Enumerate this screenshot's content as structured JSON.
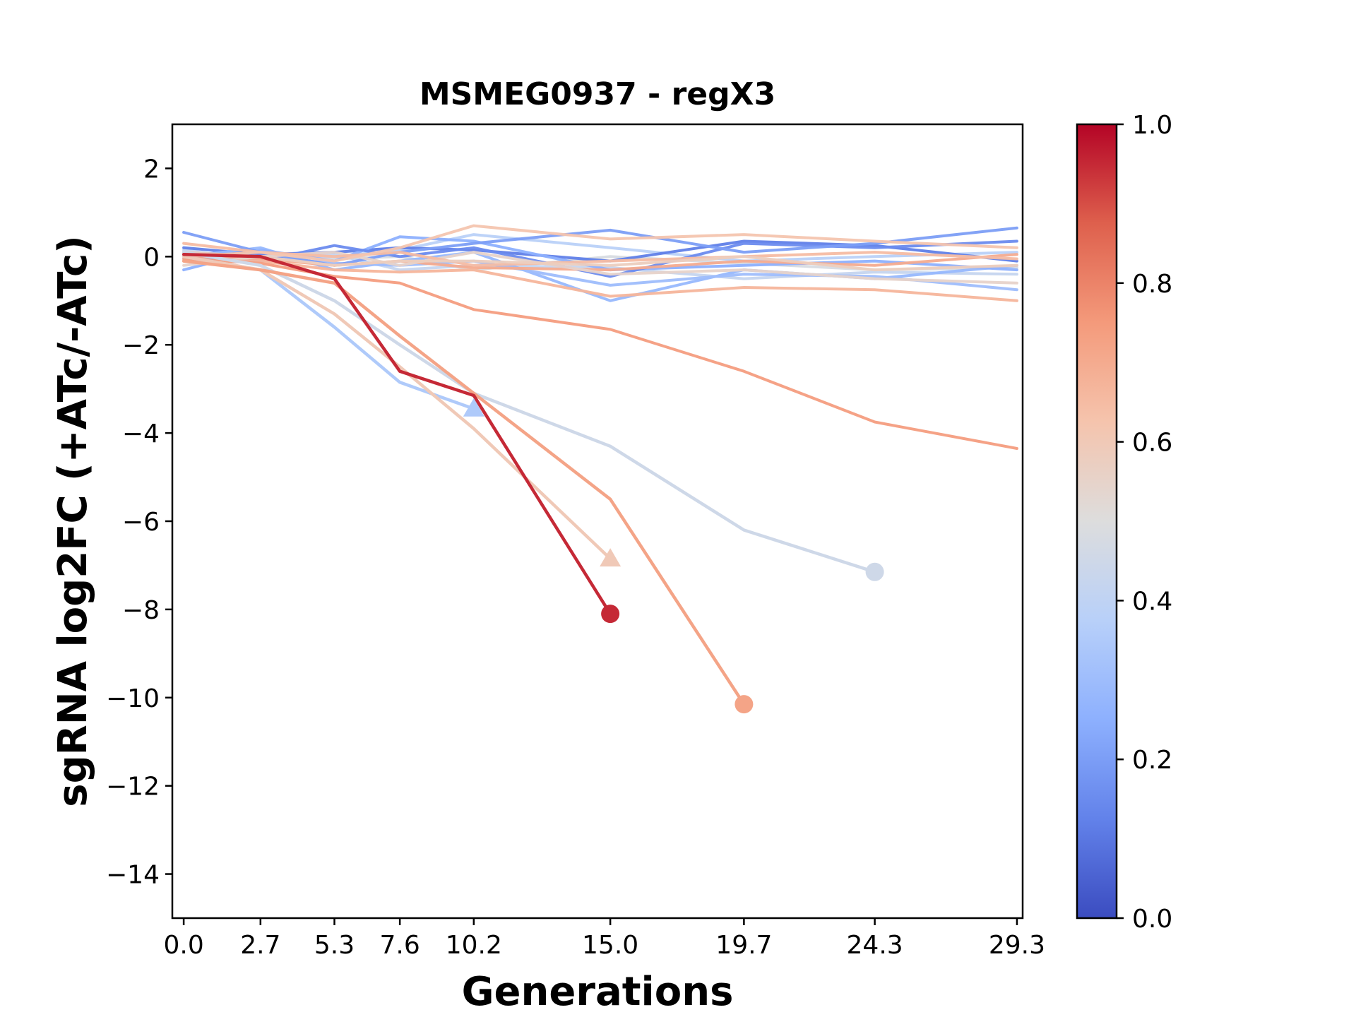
{
  "chart_data": {
    "type": "line",
    "title": "MSMEG0937 - regX3",
    "xlabel": "Generations",
    "ylabel": "sgRNA log2FC (+ATc/-ATc)",
    "xlim": [
      -0.4,
      29.5
    ],
    "ylim": [
      -15,
      3
    ],
    "x_ticks": [
      "0.0",
      "2.7",
      "5.3",
      "7.6",
      "10.2",
      "15.0",
      "19.7",
      "24.3",
      "29.3"
    ],
    "y_ticks": [
      "2",
      "0",
      "−2",
      "−4",
      "−6",
      "−8",
      "−10",
      "−12",
      "−14"
    ],
    "colorbar": {
      "colormap": "coolwarm",
      "range": [
        0,
        1
      ],
      "ticks": [
        "0.0",
        "0.2",
        "0.4",
        "0.6",
        "0.8",
        "1.0"
      ]
    },
    "legend": "none",
    "grid": false,
    "series": [
      {
        "color_value": 0.95,
        "x": [
          0.0,
          2.7,
          5.3,
          7.6,
          10.2,
          15.0
        ],
        "y": [
          0.05,
          0.0,
          -0.5,
          -2.6,
          -3.15,
          -8.1
        ],
        "end_marker": "circle"
      },
      {
        "color_value": 0.72,
        "x": [
          0.0,
          2.7,
          5.3,
          7.6,
          10.2,
          15.0,
          19.7
        ],
        "y": [
          -0.1,
          -0.3,
          -0.6,
          -1.8,
          -3.1,
          -5.5,
          -10.15
        ],
        "end_marker": "circle"
      },
      {
        "color_value": 0.45,
        "x": [
          0.0,
          2.7,
          5.3,
          7.6,
          10.2,
          15.0,
          19.7,
          24.3
        ],
        "y": [
          0.1,
          -0.2,
          -1.0,
          -2.0,
          -3.1,
          -4.3,
          -6.2,
          -7.15
        ],
        "end_marker": "circle"
      },
      {
        "color_value": 0.6,
        "x": [
          0.0,
          2.7,
          5.3,
          7.6,
          10.2,
          15.0
        ],
        "y": [
          0.0,
          -0.3,
          -1.3,
          -2.5,
          -3.9,
          -6.85
        ],
        "end_marker": "triangle"
      },
      {
        "color_value": 0.35,
        "x": [
          0.0,
          2.7,
          5.3,
          7.6,
          10.2
        ],
        "y": [
          0.0,
          -0.3,
          -1.6,
          -2.85,
          -3.45
        ],
        "end_marker": "triangle"
      },
      {
        "color_value": 0.74,
        "x": [
          0.0,
          2.7,
          5.3,
          7.6,
          10.2,
          15.0,
          19.7,
          24.3,
          29.3
        ],
        "y": [
          -0.05,
          -0.15,
          -0.45,
          -0.6,
          -1.2,
          -1.65,
          -2.6,
          -3.75,
          -4.35
        ]
      },
      {
        "color_value": 0.67,
        "x": [
          0.0,
          2.7,
          5.3,
          7.6,
          10.2,
          15.0,
          19.7,
          24.3,
          29.3
        ],
        "y": [
          -0.1,
          -0.1,
          -0.3,
          -0.35,
          -0.3,
          -0.9,
          -0.7,
          -0.75,
          -1.0
        ]
      },
      {
        "color_value": 0.62,
        "x": [
          0.0,
          2.7,
          5.3,
          7.6,
          10.2,
          15.0,
          19.7,
          24.3,
          29.3
        ],
        "y": [
          0.0,
          0.1,
          -0.1,
          0.2,
          0.7,
          0.4,
          0.5,
          0.35,
          0.2
        ]
      },
      {
        "color_value": 0.58,
        "x": [
          0.0,
          2.7,
          5.3,
          7.6,
          10.2,
          15.0,
          19.7,
          24.3,
          29.3
        ],
        "y": [
          0.1,
          0.0,
          -0.2,
          -0.1,
          -0.1,
          -0.2,
          0.0,
          -0.3,
          -0.2
        ]
      },
      {
        "color_value": 0.65,
        "x": [
          0.0,
          2.7,
          5.3,
          7.6,
          10.2,
          15.0,
          19.7,
          24.3,
          29.3
        ],
        "y": [
          0.3,
          0.1,
          0.0,
          0.1,
          -0.2,
          -0.1,
          0.0,
          0.1,
          -0.05
        ]
      },
      {
        "color_value": 0.55,
        "x": [
          0.0,
          2.7,
          5.3,
          7.6,
          10.2,
          15.0,
          19.7,
          24.3,
          29.3
        ],
        "y": [
          -0.2,
          0.0,
          0.1,
          -0.2,
          0.1,
          -0.4,
          -0.3,
          -0.5,
          -0.6
        ]
      },
      {
        "color_value": 0.7,
        "x": [
          0.0,
          2.7,
          5.3,
          7.6,
          10.2,
          15.0,
          19.7,
          24.3,
          29.3
        ],
        "y": [
          0.0,
          -0.05,
          -0.2,
          -0.1,
          -0.25,
          -0.3,
          -0.1,
          -0.2,
          0.05
        ]
      },
      {
        "color_value": 0.2,
        "x": [
          0.0,
          2.7,
          5.3,
          7.6,
          10.2,
          15.0,
          19.7,
          24.3,
          29.3
        ],
        "y": [
          0.55,
          0.1,
          -0.2,
          0.1,
          0.3,
          0.6,
          0.1,
          0.3,
          0.65
        ]
      },
      {
        "color_value": 0.15,
        "x": [
          0.0,
          2.7,
          5.3,
          7.6,
          10.2,
          15.0,
          19.7,
          24.3,
          29.3
        ],
        "y": [
          0.0,
          -0.1,
          0.25,
          0.0,
          0.2,
          -0.45,
          0.3,
          0.2,
          0.35
        ]
      },
      {
        "color_value": 0.25,
        "x": [
          0.0,
          2.7,
          5.3,
          7.6,
          10.2,
          15.0,
          19.7,
          24.3,
          29.3
        ],
        "y": [
          -0.3,
          0.15,
          -0.1,
          0.45,
          0.35,
          -0.3,
          -0.2,
          -0.1,
          -0.3
        ]
      },
      {
        "color_value": 0.3,
        "x": [
          0.0,
          2.7,
          5.3,
          7.6,
          10.2,
          15.0,
          19.7,
          24.3,
          29.3
        ],
        "y": [
          0.1,
          0.0,
          -0.15,
          -0.2,
          -0.1,
          -0.65,
          -0.4,
          -0.45,
          -0.75
        ]
      },
      {
        "color_value": 0.28,
        "x": [
          0.0,
          2.7,
          5.3,
          7.6,
          10.2,
          15.0,
          19.7,
          24.3,
          29.3
        ],
        "y": [
          0.0,
          0.2,
          -0.3,
          -0.1,
          0.1,
          -1.0,
          -0.3,
          -0.5,
          -0.2
        ]
      },
      {
        "color_value": 0.12,
        "x": [
          0.0,
          2.7,
          5.3,
          7.6,
          10.2,
          15.0,
          19.7,
          24.3,
          29.3
        ],
        "y": [
          0.2,
          0.05,
          0.1,
          0.2,
          0.15,
          -0.1,
          0.35,
          0.25,
          -0.1
        ]
      },
      {
        "color_value": 0.38,
        "x": [
          0.0,
          2.7,
          5.3,
          7.6,
          10.2,
          15.0,
          19.7,
          24.3,
          29.3
        ],
        "y": [
          -0.05,
          0.0,
          0.0,
          0.15,
          0.5,
          0.2,
          -0.1,
          0.0,
          0.1
        ]
      },
      {
        "color_value": 0.42,
        "x": [
          0.0,
          2.7,
          5.3,
          7.6,
          10.2,
          15.0,
          19.7,
          24.3,
          29.3
        ],
        "y": [
          0.15,
          -0.1,
          0.05,
          -0.3,
          -0.2,
          -0.25,
          -0.5,
          -0.35,
          -0.4
        ]
      },
      {
        "color_value": 0.48,
        "x": [
          0.0,
          2.7,
          5.3,
          7.6,
          10.2,
          15.0,
          19.7,
          24.3,
          29.3
        ],
        "y": [
          0.0,
          0.1,
          -0.05,
          0.0,
          -0.3,
          0.0,
          -0.15,
          -0.3,
          -0.25
        ]
      }
    ]
  }
}
